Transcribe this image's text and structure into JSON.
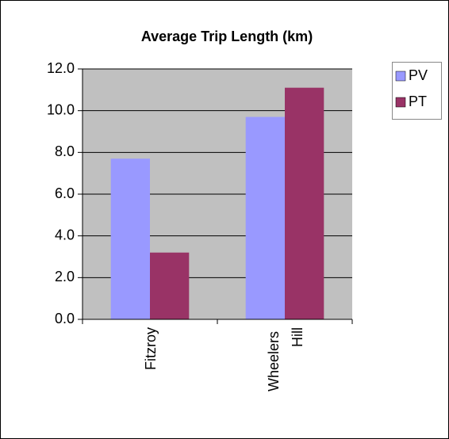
{
  "chart_data": {
    "type": "bar",
    "title": "Average Trip Length (km)",
    "categories": [
      "Fitzroy",
      "Wheelers Hill"
    ],
    "series": [
      {
        "name": "PV",
        "color": "#9999ff",
        "values": [
          7.7,
          9.7
        ]
      },
      {
        "name": "PT",
        "color": "#993366",
        "values": [
          3.2,
          11.1
        ]
      }
    ],
    "ylim": [
      0,
      12
    ],
    "yticks": [
      {
        "value": 0,
        "label": "0.0"
      },
      {
        "value": 2,
        "label": "2.0"
      },
      {
        "value": 4,
        "label": "4.0"
      },
      {
        "value": 6,
        "label": "6.0"
      },
      {
        "value": 8,
        "label": "8.0"
      },
      {
        "value": 10,
        "label": "10.0"
      },
      {
        "value": 12,
        "label": "12.0"
      }
    ],
    "grid": true,
    "legend": "right"
  }
}
